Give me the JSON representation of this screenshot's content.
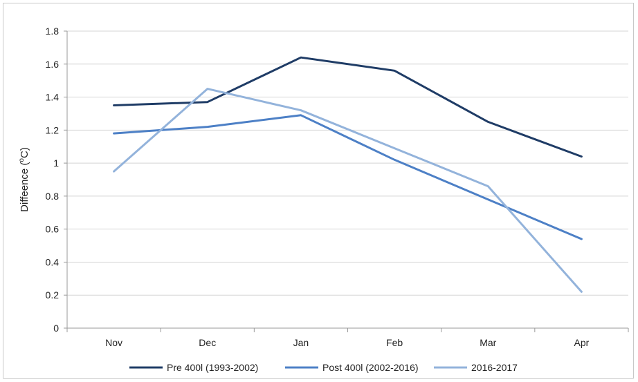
{
  "chart_data": {
    "type": "line",
    "title": "",
    "xlabel": "",
    "ylabel": "Differnce (°C)",
    "ylabel_text": "Diffe",
    "ylabel_tail": "ence (",
    "ylabel_sup": "o",
    "ylabel_end": "C)",
    "categories": [
      "Nov",
      "Dec",
      "Jan",
      "Feb",
      "Mar",
      "Apr"
    ],
    "ylim": [
      0,
      1.8
    ],
    "yticks": [
      0,
      0.2,
      0.4,
      0.6,
      0.8,
      1,
      1.2,
      1.4,
      1.6,
      1.8
    ],
    "ytick_labels": [
      "0",
      "0.2",
      "0.4",
      "0.6",
      "0.8",
      "1",
      "1.2",
      "1.4",
      "1.6",
      "1.8"
    ],
    "grid": true,
    "legend_position": "bottom",
    "series": [
      {
        "name": "Pre 400l (1993-2002)",
        "color": "#1f3c66",
        "values": [
          1.35,
          1.37,
          1.64,
          1.56,
          1.25,
          1.04
        ]
      },
      {
        "name": "Post 400l (2002-2016)",
        "color": "#4d80c6",
        "values": [
          1.18,
          1.22,
          1.29,
          1.02,
          0.78,
          0.54
        ]
      },
      {
        "name": "2016-2017",
        "color": "#93b3db",
        "values": [
          0.95,
          1.45,
          1.32,
          1.09,
          0.86,
          0.22
        ]
      }
    ]
  }
}
